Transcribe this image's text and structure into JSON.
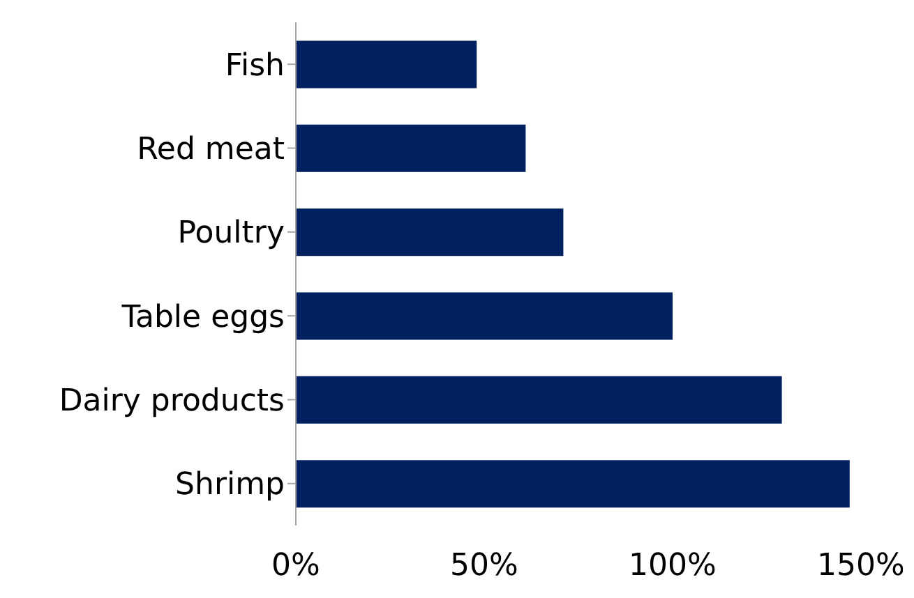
{
  "chart_data": {
    "type": "bar",
    "orientation": "horizontal",
    "categories": [
      "Fish",
      "Red meat",
      "Poultry",
      "Table eggs",
      "Dairy products",
      "Shrimp"
    ],
    "values": [
      48,
      61,
      71,
      100,
      129,
      147
    ],
    "color": "#002060",
    "xlim": [
      0,
      150
    ],
    "xticks": [
      {
        "value": 0,
        "label": "0%"
      },
      {
        "value": 50,
        "label": "50%"
      },
      {
        "value": 100,
        "label": "100%"
      },
      {
        "value": 150,
        "label": "150%"
      }
    ],
    "grid": false,
    "legend": false
  }
}
